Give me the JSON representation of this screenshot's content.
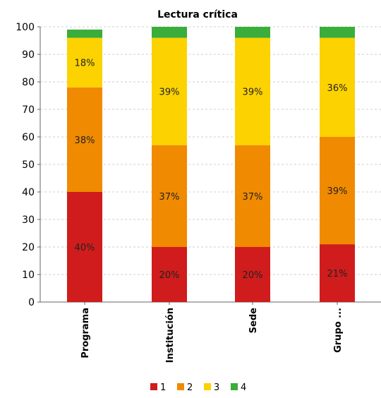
{
  "chart_data": {
    "type": "bar",
    "stacked": true,
    "title": "Lectura crítica",
    "xlabel": "",
    "ylabel": "",
    "ylim": [
      0,
      100
    ],
    "yticks": [
      0,
      10,
      20,
      30,
      40,
      50,
      60,
      70,
      80,
      90,
      100
    ],
    "grid": true,
    "legend_position": "bottom",
    "categories": [
      "Programa",
      "Institución",
      "Sede",
      "Grupo ..."
    ],
    "series": [
      {
        "name": "1",
        "color": "#d01c1c",
        "values": [
          40,
          20,
          20,
          21
        ],
        "labels": [
          "40%",
          "20%",
          "20%",
          "21%"
        ]
      },
      {
        "name": "2",
        "color": "#f08a00",
        "values": [
          38,
          37,
          37,
          39
        ],
        "labels": [
          "38%",
          "37%",
          "37%",
          "39%"
        ]
      },
      {
        "name": "3",
        "color": "#fcd200",
        "values": [
          18,
          39,
          39,
          36
        ],
        "labels": [
          "18%",
          "39%",
          "39%",
          "36%"
        ]
      },
      {
        "name": "4",
        "color": "#3aad3a",
        "values": [
          3,
          4,
          4,
          4
        ],
        "labels": [
          "",
          "",
          "",
          ""
        ]
      }
    ]
  }
}
